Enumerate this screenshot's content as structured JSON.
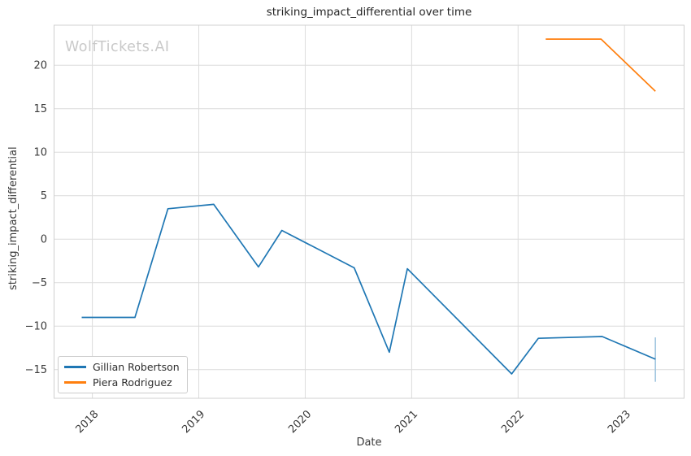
{
  "watermark": "WolfTickets.AI",
  "chart_data": {
    "type": "line",
    "title": "striking_impact_differential over time",
    "xlabel": "Date",
    "ylabel": "striking_impact_differential",
    "xlim": [
      2017.64,
      2023.56
    ],
    "ylim": [
      -18.3,
      24.6
    ],
    "grid": true,
    "legend_position": "lower left",
    "x_ticks": [
      {
        "v": 2018,
        "label": "2018"
      },
      {
        "v": 2019,
        "label": "2019"
      },
      {
        "v": 2020,
        "label": "2020"
      },
      {
        "v": 2021,
        "label": "2021"
      },
      {
        "v": 2022,
        "label": "2022"
      },
      {
        "v": 2023,
        "label": "2023"
      }
    ],
    "y_ticks": [
      {
        "v": 20,
        "label": "20"
      },
      {
        "v": 15,
        "label": "15"
      },
      {
        "v": 10,
        "label": "10"
      },
      {
        "v": 5,
        "label": "5"
      },
      {
        "v": 0,
        "label": "0"
      },
      {
        "v": -5,
        "label": "−5"
      },
      {
        "v": -10,
        "label": "−10"
      },
      {
        "v": -15,
        "label": "−15"
      }
    ],
    "series": [
      {
        "name": "Gillian Robertson",
        "color": "#1f77b4",
        "x": [
          2017.9,
          2018.4,
          2018.71,
          2019.14,
          2019.56,
          2019.78,
          2020.46,
          2020.79,
          2020.96,
          2021.94,
          2022.19,
          2022.79,
          2023.29
        ],
        "y": [
          -9.0,
          -9.0,
          3.5,
          4.0,
          -3.2,
          1.0,
          -3.3,
          -13.0,
          -3.4,
          -15.5,
          -11.4,
          -11.2,
          -13.8
        ]
      },
      {
        "name": "Piera Rodriguez",
        "color": "#ff7f0e",
        "x": [
          2022.26,
          2022.78,
          2023.29
        ],
        "y": [
          23.0,
          23.0,
          17.0
        ]
      }
    ],
    "error_bars": [
      {
        "series": 0,
        "x": 2023.29,
        "from": -16.4,
        "to": -11.3,
        "color": "#9ac2dd"
      }
    ]
  },
  "colors": {
    "grid": "#dcdcdc",
    "spine": "#d0d0d0",
    "tick_label": "#3a3a3a",
    "title": "#262626",
    "watermark": "#c9c9c9",
    "legend_border": "#cccccc"
  }
}
